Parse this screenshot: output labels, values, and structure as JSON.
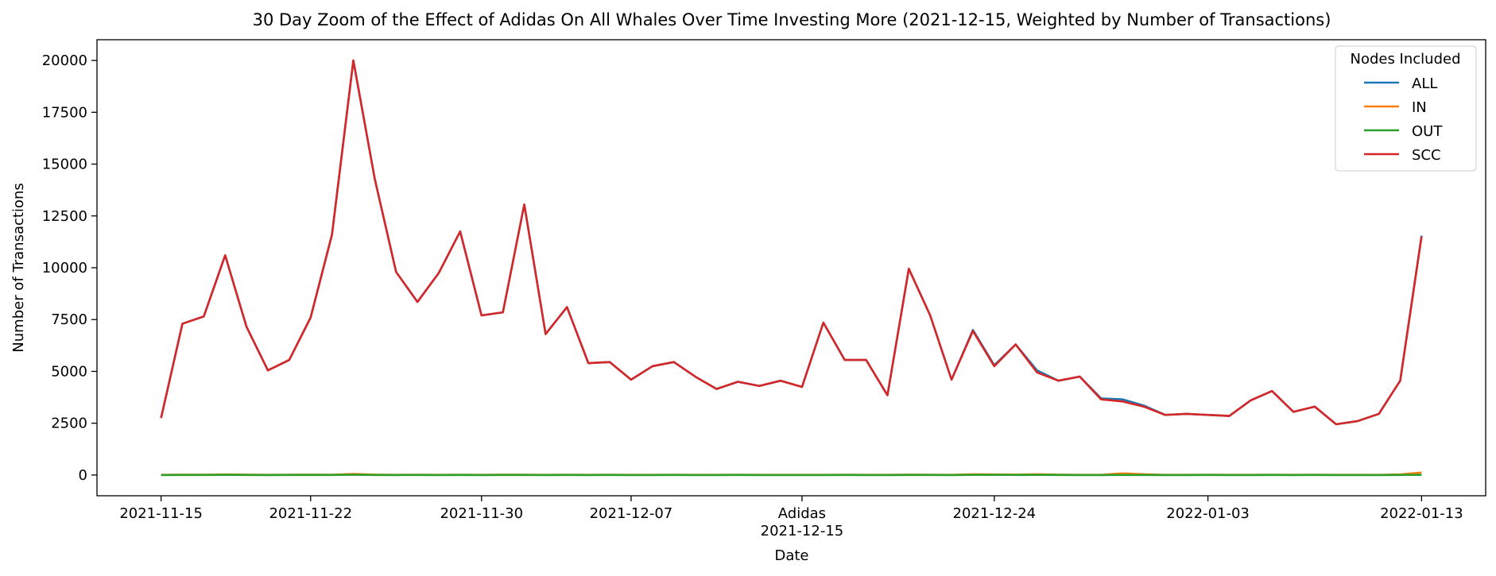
{
  "chart_data": {
    "type": "line",
    "title": "30 Day Zoom of the Effect of Adidas On All Whales Over Time Investing More (2021-12-15, Weighted by Number of Transactions)",
    "xlabel": "Date",
    "ylabel": "Number of Transactions",
    "ylim": [
      -1000,
      21000
    ],
    "xlim": [
      "2021-11-12",
      "2022-01-16"
    ],
    "grid": false,
    "legend": {
      "title": "Nodes Included",
      "placement": "top-right"
    },
    "x_ticks": [
      {
        "date": "2021-11-15",
        "label": "2021-11-15"
      },
      {
        "date": "2021-11-22",
        "label": "2021-11-22"
      },
      {
        "date": "2021-11-30",
        "label": "2021-11-30"
      },
      {
        "date": "2021-12-07",
        "label": "2021-12-07"
      },
      {
        "date": "2021-12-15",
        "label": "Adidas\n2021-12-15"
      },
      {
        "date": "2021-12-24",
        "label": "2021-12-24"
      },
      {
        "date": "2022-01-03",
        "label": "2022-01-03"
      },
      {
        "date": "2022-01-13",
        "label": "2022-01-13"
      }
    ],
    "y_ticks": [
      0,
      2500,
      5000,
      7500,
      10000,
      12500,
      15000,
      17500,
      20000
    ],
    "x": [
      "2021-11-15",
      "2021-11-16",
      "2021-11-17",
      "2021-11-18",
      "2021-11-19",
      "2021-11-20",
      "2021-11-21",
      "2021-11-22",
      "2021-11-23",
      "2021-11-24",
      "2021-11-25",
      "2021-11-26",
      "2021-11-27",
      "2021-11-28",
      "2021-11-29",
      "2021-11-30",
      "2021-12-01",
      "2021-12-02",
      "2021-12-03",
      "2021-12-04",
      "2021-12-05",
      "2021-12-06",
      "2021-12-07",
      "2021-12-08",
      "2021-12-09",
      "2021-12-10",
      "2021-12-11",
      "2021-12-12",
      "2021-12-13",
      "2021-12-14",
      "2021-12-15",
      "2021-12-16",
      "2021-12-17",
      "2021-12-18",
      "2021-12-19",
      "2021-12-20",
      "2021-12-21",
      "2021-12-22",
      "2021-12-23",
      "2021-12-24",
      "2021-12-25",
      "2021-12-26",
      "2021-12-27",
      "2021-12-28",
      "2021-12-29",
      "2021-12-30",
      "2021-12-31",
      "2022-01-01",
      "2022-01-02",
      "2022-01-03",
      "2022-01-04",
      "2022-01-05",
      "2022-01-06",
      "2022-01-07",
      "2022-01-08",
      "2022-01-09",
      "2022-01-10",
      "2022-01-11",
      "2022-01-12",
      "2022-01-13"
    ],
    "series": [
      {
        "name": "ALL",
        "color": "#1f77b4",
        "values": [
          2750,
          7300,
          7650,
          10600,
          7150,
          5050,
          5550,
          7600,
          11600,
          20000,
          14300,
          9800,
          8350,
          9750,
          11750,
          7700,
          7850,
          13050,
          6800,
          8100,
          5400,
          5450,
          4600,
          5250,
          5450,
          4750,
          4150,
          4500,
          4300,
          4550,
          4250,
          7350,
          5550,
          5550,
          3850,
          9950,
          7700,
          4600,
          7000,
          5300,
          6300,
          5050,
          4550,
          4750,
          3700,
          3650,
          3350,
          2900,
          2950,
          2900,
          2850,
          3600,
          4050,
          3050,
          3300,
          2450,
          2600,
          2950,
          4550,
          11550
        ]
      },
      {
        "name": "IN",
        "color": "#ff7f0e",
        "values": [
          10,
          20,
          15,
          30,
          20,
          10,
          15,
          20,
          15,
          50,
          20,
          10,
          15,
          10,
          15,
          10,
          20,
          15,
          10,
          15,
          10,
          15,
          10,
          10,
          15,
          10,
          10,
          15,
          10,
          10,
          10,
          10,
          15,
          10,
          10,
          20,
          15,
          10,
          40,
          30,
          20,
          40,
          20,
          10,
          10,
          80,
          40,
          10,
          10,
          15,
          10,
          10,
          15,
          10,
          15,
          10,
          10,
          10,
          30,
          120
        ]
      },
      {
        "name": "OUT",
        "color": "#2ca02c",
        "values": [
          0,
          5,
          5,
          10,
          5,
          0,
          5,
          5,
          5,
          15,
          5,
          0,
          5,
          0,
          5,
          0,
          5,
          5,
          0,
          5,
          0,
          5,
          0,
          0,
          5,
          0,
          0,
          5,
          0,
          0,
          0,
          0,
          5,
          0,
          0,
          5,
          5,
          0,
          10,
          10,
          5,
          10,
          5,
          0,
          0,
          5,
          5,
          0,
          0,
          5,
          0,
          0,
          5,
          0,
          5,
          0,
          0,
          0,
          5,
          10
        ]
      },
      {
        "name": "SCC",
        "color": "#d62728",
        "values": [
          2750,
          7300,
          7650,
          10600,
          7150,
          5050,
          5550,
          7600,
          11600,
          20000,
          14300,
          9800,
          8350,
          9750,
          11750,
          7700,
          7850,
          13050,
          6800,
          8100,
          5400,
          5450,
          4600,
          5250,
          5450,
          4750,
          4150,
          4500,
          4300,
          4550,
          4250,
          7350,
          5550,
          5550,
          3850,
          9950,
          7700,
          4600,
          6950,
          5250,
          6300,
          4950,
          4550,
          4750,
          3650,
          3550,
          3300,
          2900,
          2950,
          2900,
          2850,
          3600,
          4050,
          3050,
          3300,
          2450,
          2600,
          2950,
          4550,
          11500
        ]
      }
    ]
  }
}
